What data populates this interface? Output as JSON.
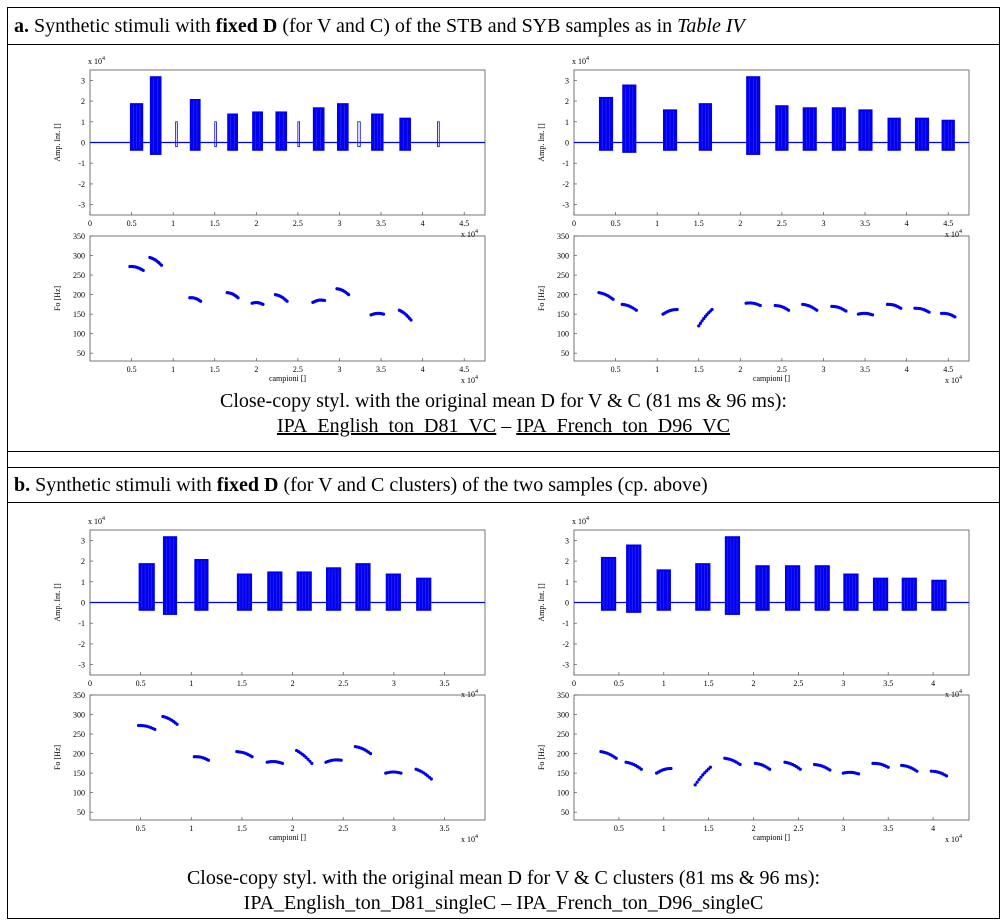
{
  "section_a": {
    "label": "a.",
    "title_pre": "Synthetic stimuli with ",
    "title_bold": "fixed D",
    "title_mid": " (for V and C) of the STB and SYB samples as in ",
    "title_italic": "Table IV",
    "caption_line1": "Close-copy styl. with the original mean D for V & C (81 ms & 96 ms):",
    "link_left": "IPA_English_ton_D81_VC",
    "link_sep": " – ",
    "link_right": "IPA_French_ton_D96_VC"
  },
  "section_b": {
    "label": "b.",
    "title_pre": "Synthetic stimuli with ",
    "title_bold": "fixed D",
    "title_mid": " (for V and C clusters) of the two samples (cp. above)",
    "caption_line1": "Close-copy styl. with the original mean D for V & C clusters (81 ms & 96 ms):",
    "caption_line2": "IPA_English_ton_D81_singleC – IPA_French_ton_D96_singleC"
  },
  "axes": {
    "amp_ylabel": "Amp. Int. []",
    "f0_ylabel": "Fo [Hz]",
    "xlabel": "campioni []",
    "xexp": "x 10",
    "xexp_sup": "4",
    "yexp": "x 10",
    "yexp_sup": "4"
  },
  "chart_data": [
    {
      "id": "a-left-amp",
      "type": "bar",
      "xlim": [
        0,
        4.75
      ],
      "xticks": [
        0,
        0.5,
        1,
        1.5,
        2,
        2.5,
        3,
        3.5,
        4,
        4.5
      ],
      "ylim": [
        -3.5,
        3.5
      ],
      "yticks": [
        -3,
        -2,
        -1,
        0,
        1,
        2,
        3
      ],
      "segments": [
        [
          0.48,
          0.64,
          1.9,
          -0.4,
          "v"
        ],
        [
          0.72,
          0.86,
          3.2,
          -0.6,
          "v"
        ],
        [
          1.03,
          1.05,
          1.0,
          -0.2,
          "c"
        ],
        [
          1.2,
          1.33,
          2.1,
          -0.4,
          "v"
        ],
        [
          1.5,
          1.52,
          1.0,
          -0.2,
          "c"
        ],
        [
          1.65,
          1.78,
          1.4,
          -0.4,
          "v"
        ],
        [
          1.95,
          2.08,
          1.5,
          -0.4,
          "v"
        ],
        [
          2.23,
          2.37,
          1.5,
          -0.4,
          "v"
        ],
        [
          2.5,
          2.52,
          1.0,
          -0.2,
          "c"
        ],
        [
          2.68,
          2.82,
          1.7,
          -0.4,
          "v"
        ],
        [
          2.97,
          3.11,
          1.9,
          -0.4,
          "v"
        ],
        [
          3.22,
          3.25,
          1.0,
          -0.2,
          "c"
        ],
        [
          3.38,
          3.53,
          1.4,
          -0.4,
          "v"
        ],
        [
          3.72,
          3.86,
          1.2,
          -0.4,
          "v"
        ],
        [
          4.18,
          4.2,
          1.0,
          -0.2,
          "c"
        ]
      ]
    },
    {
      "id": "a-right-amp",
      "type": "bar",
      "xlim": [
        0,
        4.75
      ],
      "xticks": [
        0,
        0.5,
        1,
        1.5,
        2,
        2.5,
        3,
        3.5,
        4,
        4.5
      ],
      "ylim": [
        -3.5,
        3.5
      ],
      "yticks": [
        -3,
        -2,
        -1,
        0,
        1,
        2,
        3
      ],
      "segments": [
        [
          0.3,
          0.47,
          2.2,
          -0.4,
          "v"
        ],
        [
          0.58,
          0.75,
          2.8,
          -0.5,
          "v"
        ],
        [
          1.07,
          1.24,
          1.6,
          -0.4,
          "v"
        ],
        [
          1.5,
          1.66,
          1.9,
          -0.4,
          "v"
        ],
        [
          2.07,
          2.24,
          3.2,
          -0.6,
          "v"
        ],
        [
          2.42,
          2.58,
          1.8,
          -0.4,
          "v"
        ],
        [
          2.75,
          2.92,
          1.7,
          -0.4,
          "v"
        ],
        [
          3.1,
          3.27,
          1.7,
          -0.4,
          "v"
        ],
        [
          3.42,
          3.59,
          1.6,
          -0.4,
          "v"
        ],
        [
          3.77,
          3.93,
          1.2,
          -0.4,
          "v"
        ],
        [
          4.1,
          4.27,
          1.2,
          -0.4,
          "v"
        ],
        [
          4.42,
          4.58,
          1.1,
          -0.4,
          "v"
        ]
      ]
    },
    {
      "id": "a-left-f0",
      "type": "scatter",
      "xlim": [
        0,
        4.75
      ],
      "xticks": [
        0.5,
        1,
        1.5,
        2,
        2.5,
        3,
        3.5,
        4,
        4.5
      ],
      "ylim": [
        30,
        350
      ],
      "yticks": [
        50,
        100,
        150,
        200,
        250,
        300,
        350
      ],
      "groups": [
        [
          0.48,
          0.64,
          272,
          262
        ],
        [
          0.72,
          0.86,
          295,
          275
        ],
        [
          1.2,
          1.33,
          192,
          183
        ],
        [
          1.65,
          1.78,
          205,
          192
        ],
        [
          1.95,
          2.08,
          178,
          175
        ],
        [
          2.23,
          2.37,
          200,
          183
        ],
        [
          2.68,
          2.82,
          180,
          185
        ],
        [
          2.97,
          3.11,
          215,
          200
        ],
        [
          3.38,
          3.53,
          148,
          150
        ],
        [
          3.72,
          3.86,
          160,
          135
        ]
      ]
    },
    {
      "id": "a-right-f0",
      "type": "scatter",
      "xlim": [
        0,
        4.75
      ],
      "xticks": [
        0.5,
        1,
        1.5,
        2,
        2.5,
        3,
        3.5,
        4,
        4.5
      ],
      "ylim": [
        30,
        350
      ],
      "yticks": [
        50,
        100,
        150,
        200,
        250,
        300,
        350
      ],
      "groups": [
        [
          0.3,
          0.47,
          205,
          188
        ],
        [
          0.58,
          0.75,
          175,
          160
        ],
        [
          1.07,
          1.24,
          150,
          162
        ],
        [
          1.5,
          1.66,
          120,
          162
        ],
        [
          2.07,
          2.24,
          178,
          172
        ],
        [
          2.42,
          2.58,
          172,
          160
        ],
        [
          2.75,
          2.92,
          175,
          160
        ],
        [
          3.1,
          3.27,
          170,
          158
        ],
        [
          3.42,
          3.59,
          150,
          148
        ],
        [
          3.77,
          3.93,
          175,
          165
        ],
        [
          4.1,
          4.27,
          165,
          155
        ],
        [
          4.42,
          4.58,
          152,
          143
        ]
      ]
    },
    {
      "id": "b-left-amp",
      "type": "bar",
      "xlim": [
        0,
        3.9
      ],
      "xticks": [
        0,
        0.5,
        1,
        1.5,
        2,
        2.5,
        3,
        3.5
      ],
      "ylim": [
        -3.5,
        3.5
      ],
      "yticks": [
        -3,
        -2,
        -1,
        0,
        1,
        2,
        3
      ],
      "segments": [
        [
          0.48,
          0.64,
          1.9,
          -0.4,
          "v"
        ],
        [
          0.72,
          0.86,
          3.2,
          -0.6,
          "v"
        ],
        [
          1.03,
          1.17,
          2.1,
          -0.4,
          "v"
        ],
        [
          1.45,
          1.6,
          1.4,
          -0.4,
          "v"
        ],
        [
          1.75,
          1.9,
          1.5,
          -0.4,
          "v"
        ],
        [
          2.04,
          2.19,
          1.5,
          -0.4,
          "v"
        ],
        [
          2.33,
          2.48,
          1.7,
          -0.4,
          "v"
        ],
        [
          2.62,
          2.77,
          1.9,
          -0.4,
          "v"
        ],
        [
          2.92,
          3.07,
          1.4,
          -0.4,
          "v"
        ],
        [
          3.22,
          3.37,
          1.2,
          -0.4,
          "v"
        ]
      ]
    },
    {
      "id": "b-right-amp",
      "type": "bar",
      "xlim": [
        0,
        4.4
      ],
      "xticks": [
        0,
        0.5,
        1,
        1.5,
        2,
        2.5,
        3,
        3.5,
        4
      ],
      "ylim": [
        -3.5,
        3.5
      ],
      "yticks": [
        -3,
        -2,
        -1,
        0,
        1,
        2,
        3
      ],
      "segments": [
        [
          0.3,
          0.47,
          2.2,
          -0.4,
          "v"
        ],
        [
          0.58,
          0.75,
          2.8,
          -0.5,
          "v"
        ],
        [
          0.92,
          1.08,
          1.6,
          -0.4,
          "v"
        ],
        [
          1.35,
          1.52,
          1.9,
          -0.4,
          "v"
        ],
        [
          1.68,
          1.85,
          3.2,
          -0.6,
          "v"
        ],
        [
          2.02,
          2.18,
          1.8,
          -0.4,
          "v"
        ],
        [
          2.35,
          2.52,
          1.8,
          -0.4,
          "v"
        ],
        [
          2.68,
          2.85,
          1.8,
          -0.4,
          "v"
        ],
        [
          3.0,
          3.17,
          1.4,
          -0.4,
          "v"
        ],
        [
          3.33,
          3.5,
          1.2,
          -0.4,
          "v"
        ],
        [
          3.65,
          3.82,
          1.2,
          -0.4,
          "v"
        ],
        [
          3.98,
          4.15,
          1.1,
          -0.4,
          "v"
        ]
      ]
    },
    {
      "id": "b-left-f0",
      "type": "scatter",
      "xlim": [
        0,
        3.9
      ],
      "xticks": [
        0.5,
        1,
        1.5,
        2,
        2.5,
        3,
        3.5
      ],
      "ylim": [
        30,
        350
      ],
      "yticks": [
        50,
        100,
        150,
        200,
        250,
        300,
        350
      ],
      "groups": [
        [
          0.48,
          0.64,
          272,
          262
        ],
        [
          0.72,
          0.86,
          295,
          275
        ],
        [
          1.03,
          1.17,
          192,
          183
        ],
        [
          1.45,
          1.6,
          205,
          192
        ],
        [
          1.75,
          1.9,
          178,
          175
        ],
        [
          2.04,
          2.19,
          208,
          175
        ],
        [
          2.33,
          2.48,
          178,
          183
        ],
        [
          2.62,
          2.77,
          218,
          200
        ],
        [
          2.92,
          3.07,
          150,
          150
        ],
        [
          3.22,
          3.37,
          160,
          135
        ]
      ]
    },
    {
      "id": "b-right-f0",
      "type": "scatter",
      "xlim": [
        0,
        4.4
      ],
      "xticks": [
        0.5,
        1,
        1.5,
        2,
        2.5,
        3,
        3.5,
        4
      ],
      "ylim": [
        30,
        350
      ],
      "yticks": [
        50,
        100,
        150,
        200,
        250,
        300,
        350
      ],
      "groups": [
        [
          0.3,
          0.47,
          205,
          188
        ],
        [
          0.58,
          0.75,
          178,
          160
        ],
        [
          0.92,
          1.08,
          150,
          162
        ],
        [
          1.35,
          1.52,
          120,
          165
        ],
        [
          1.68,
          1.85,
          188,
          172
        ],
        [
          2.02,
          2.18,
          175,
          160
        ],
        [
          2.35,
          2.52,
          178,
          160
        ],
        [
          2.68,
          2.85,
          172,
          158
        ],
        [
          3.0,
          3.17,
          150,
          148
        ],
        [
          3.33,
          3.5,
          175,
          165
        ],
        [
          3.65,
          3.82,
          170,
          155
        ],
        [
          3.98,
          4.15,
          155,
          143
        ]
      ]
    }
  ]
}
